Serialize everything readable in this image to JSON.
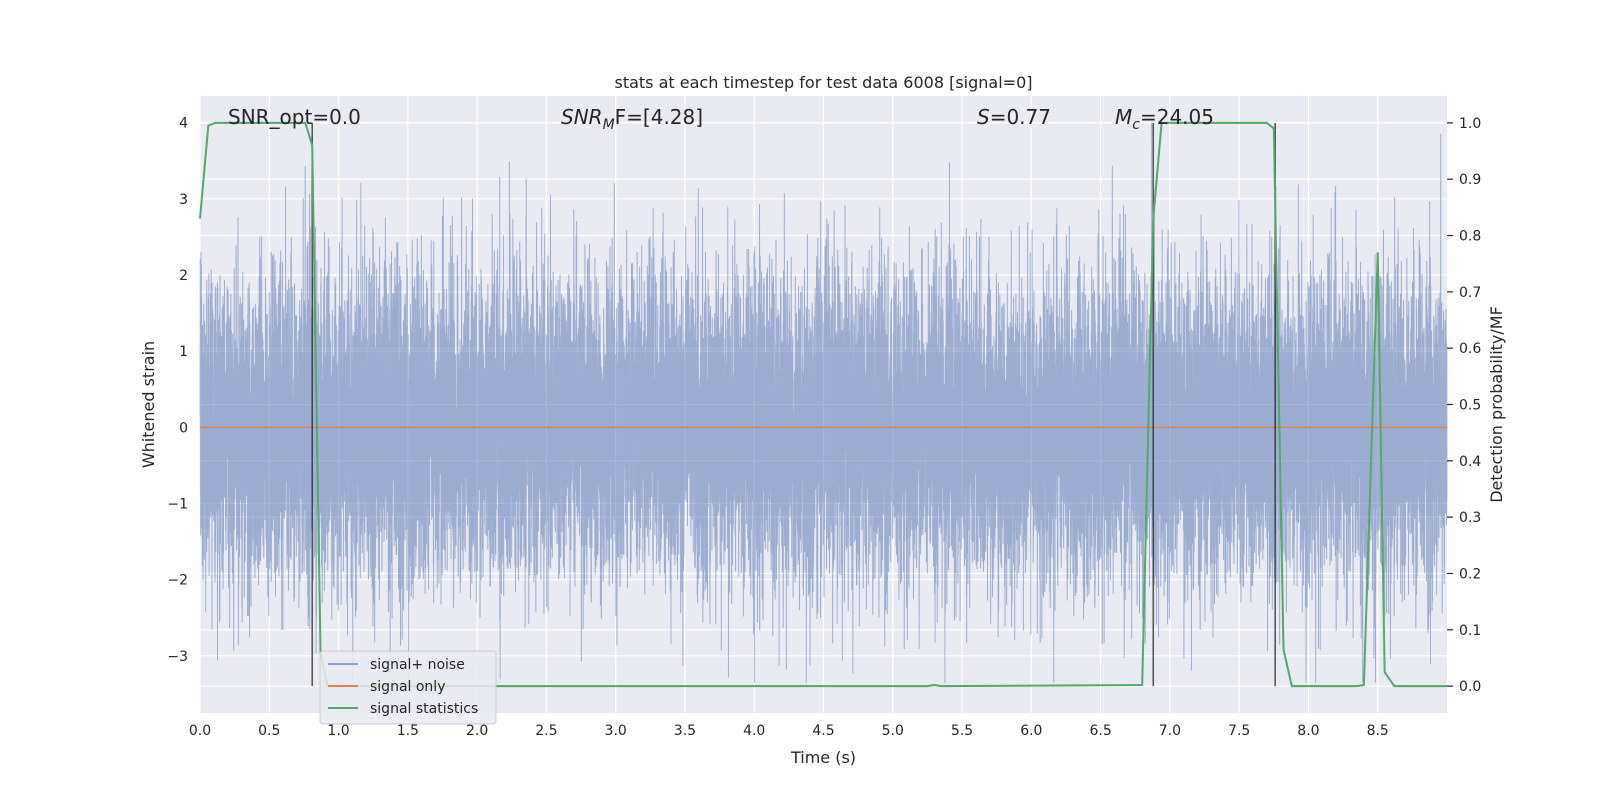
{
  "chart_data": {
    "type": "line",
    "title": "stats at each timestep for test data 6008 [signal=0]",
    "xlabel": "Time (s)",
    "ylabel": "Whitened strain",
    "ylabel_right": "Detection probability/MF",
    "xlim": [
      0.0,
      9.0
    ],
    "ylim": [
      -3.75,
      4.35
    ],
    "ylim_right": [
      -0.0477,
      1.0477
    ],
    "x_ticks": [
      0.0,
      0.5,
      1.0,
      1.5,
      2.0,
      2.5,
      3.0,
      3.5,
      4.0,
      4.5,
      5.0,
      5.5,
      6.0,
      6.5,
      7.0,
      7.5,
      8.0,
      8.5
    ],
    "x_tick_labels": [
      "0.0",
      "0.5",
      "1.0",
      "1.5",
      "2.0",
      "2.5",
      "3.0",
      "3.5",
      "4.0",
      "4.5",
      "5.0",
      "5.5",
      "6.0",
      "6.5",
      "7.0",
      "7.5",
      "8.0",
      "8.5"
    ],
    "y_ticks": [
      -3,
      -2,
      -1,
      0,
      1,
      2,
      3,
      4
    ],
    "y_tick_labels": [
      "−3",
      "−2",
      "−1",
      "0",
      "1",
      "2",
      "3",
      "4"
    ],
    "y_right_ticks": [
      0.0,
      0.1,
      0.2,
      0.3,
      0.4,
      0.5,
      0.6,
      0.7,
      0.8,
      0.9,
      1.0
    ],
    "y_right_tick_labels": [
      "0.0",
      "0.1",
      "0.2",
      "0.3",
      "0.4",
      "0.5",
      "0.6",
      "0.7",
      "0.8",
      "0.9",
      "1.0"
    ],
    "grid": true,
    "legend_position": "lower-left",
    "annotations": {
      "snr_opt": "SNR_opt=0.0",
      "snr_mf_main": "SNR",
      "snr_mf_sub": "M",
      "snr_mf_rest": "F=[4.28]",
      "s_main": "S",
      "s_rest": "=0.77",
      "mc_main": "M",
      "mc_sub": "c",
      "mc_rest": "=24.05"
    },
    "series": [
      {
        "name": "signal+ noise",
        "color": "#4c72b0",
        "alpha": 0.5,
        "sample_rate_hz": 2048,
        "approx_std": 1.0,
        "approx_range": [
          -3.35,
          4.0
        ]
      },
      {
        "name": "signal only",
        "color": "#dd8452",
        "x": [
          0.0,
          9.0
        ],
        "y": [
          0.0,
          0.0
        ]
      },
      {
        "name": "signal statistics",
        "color": "#55a868",
        "axis": "right",
        "x": [
          0.0,
          0.06,
          0.11,
          0.5,
          0.76,
          0.81,
          0.87,
          0.92,
          5.25,
          5.3,
          5.35,
          6.8,
          6.88,
          6.94,
          7.7,
          7.75,
          7.82,
          7.88,
          8.35,
          8.4,
          8.5,
          8.55,
          8.62,
          9.0
        ],
        "y": [
          0.83,
          0.995,
          1.0,
          1.0,
          1.0,
          0.96,
          0.06,
          0.0,
          0.0,
          0.002,
          0.0,
          0.002,
          0.83,
          1.0,
          1.0,
          0.99,
          0.065,
          0.0,
          0.0,
          0.002,
          0.77,
          0.025,
          0.0,
          0.0
        ]
      }
    ],
    "vertical_lines": {
      "color": "#1a1a1a",
      "x": [
        0.81,
        6.88,
        7.76
      ],
      "y_range_right": [
        0.0,
        1.0
      ]
    }
  },
  "legend": {
    "items": [
      {
        "label": "signal+ noise",
        "color": "#4c72b0"
      },
      {
        "label": "signal only",
        "color": "#dd8452"
      },
      {
        "label": "signal statistics",
        "color": "#55a868"
      }
    ]
  },
  "colors": {
    "plot_background": "#eaeaf2",
    "grid": "#ffffff",
    "text": "#262626"
  }
}
